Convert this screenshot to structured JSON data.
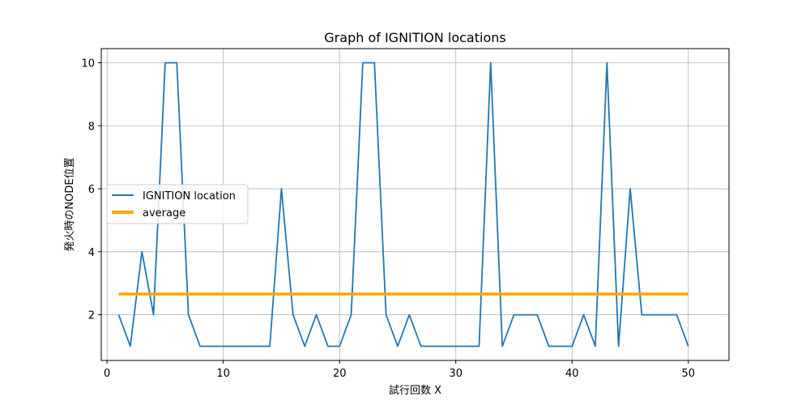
{
  "chart_data": {
    "type": "line",
    "title": "Graph of IGNITION locations",
    "xlabel": "試行回数 X",
    "ylabel": "発火時のNODE位置",
    "xlim": [
      -0.5,
      53.5
    ],
    "ylim": [
      0.55,
      10.45
    ],
    "xticks": [
      0,
      10,
      20,
      30,
      40,
      50
    ],
    "yticks": [
      2,
      4,
      6,
      8,
      10
    ],
    "grid": true,
    "legend_position": "center-left",
    "series": [
      {
        "name": "IGNITION location",
        "color": "#1f77b4",
        "x": [
          1,
          2,
          3,
          4,
          5,
          6,
          7,
          8,
          9,
          10,
          11,
          12,
          13,
          14,
          15,
          16,
          17,
          18,
          19,
          20,
          21,
          22,
          23,
          24,
          25,
          26,
          27,
          28,
          29,
          30,
          31,
          32,
          33,
          34,
          35,
          36,
          37,
          38,
          39,
          40,
          41,
          42,
          43,
          44,
          45,
          46,
          47,
          48,
          49,
          50
        ],
        "y": [
          2,
          1,
          4,
          2,
          10,
          10,
          2,
          1,
          1,
          1,
          1,
          1,
          1,
          1,
          6,
          2,
          1,
          2,
          1,
          1,
          2,
          10,
          10,
          2,
          1,
          2,
          1,
          1,
          1,
          1,
          1,
          1,
          10,
          1,
          2,
          2,
          2,
          1,
          1,
          1,
          2,
          1,
          10,
          1,
          6,
          2,
          2,
          2,
          2,
          1
        ]
      },
      {
        "name": "average",
        "color": "#ffa500",
        "x": [
          1,
          50
        ],
        "y": [
          2.66,
          2.66
        ]
      }
    ]
  }
}
